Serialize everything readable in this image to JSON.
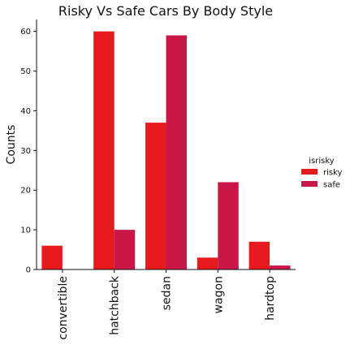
{
  "chart_data": {
    "type": "bar",
    "title": "Risky Vs Safe Cars By Body Style",
    "xlabel": "",
    "ylabel": "Counts",
    "categories": [
      "convertible",
      "hatchback",
      "sedan",
      "wagon",
      "hardtop"
    ],
    "series": [
      {
        "name": "risky",
        "values": [
          6,
          60,
          37,
          3,
          7
        ],
        "color": "#e8191f"
      },
      {
        "name": "safe",
        "values": [
          0,
          10,
          59,
          22,
          1
        ],
        "color": "#c81848"
      }
    ],
    "ylim": [
      0,
      63
    ],
    "yticks": [
      0,
      10,
      20,
      30,
      40,
      50,
      60
    ],
    "legend": {
      "title": "isrisky",
      "placement": "right"
    },
    "grid": false
  }
}
